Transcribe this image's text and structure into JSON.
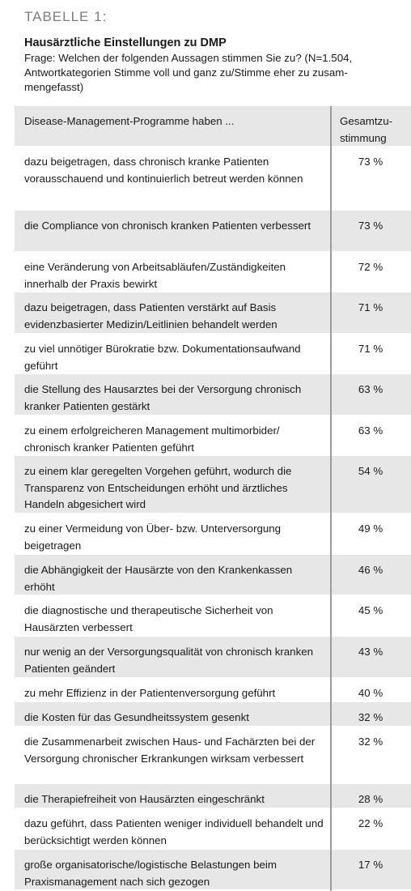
{
  "label": "TABELLE 1:",
  "title": "Hausärztliche Einstellungen zu DMP",
  "subtitle": "Frage: Welchen der folgenden Aussagen stimmen Sie zu? (N=1.504, Antwortkategorien Stimme voll und ganz zu/Stimme eher zu zusam­mengefasst)",
  "header": {
    "statement": "Disease-Management-Programme haben ...",
    "agreement": "Gesamtzu-stimmung"
  },
  "rows": [
    {
      "text": "dazu beigetragen, dass chronisch kranke Patienten vorausschauend und kontinuierlich betreut werden können",
      "value": "73 %"
    },
    {
      "text": "die Compliance von chronisch kranken Patienten verbessert",
      "value": "73 %"
    },
    {
      "text": "eine Veränderung von Arbeitsabläufen/Zuständigkeiten innerhalb der Praxis bewirkt",
      "value": "72 %"
    },
    {
      "text": "dazu beigetragen, dass Patienten verstärkt auf Basis evidenzbasierter Medizin/Leitlinien behandelt werden",
      "value": "71 %"
    },
    {
      "text": "zu viel unnötiger Bürokratie bzw. Dokumentationsaufwand geführt",
      "value": "71 %"
    },
    {
      "text": "die Stellung des Hausarztes bei der Versorgung chronisch kranker Patienten gestärkt",
      "value": "63 %"
    },
    {
      "text": "zu einem erfolgreicheren Management multimorbider/ chronisch kranker Patienten geführt",
      "value": "63 %"
    },
    {
      "text": "zu einem klar geregelten Vorgehen geführt, wodurch die Transparenz von Entscheidungen erhöht und ärztliches Handeln abgesichert wird",
      "value": "54 %"
    },
    {
      "text": "zu einer Vermeidung von Über- bzw. Unterversorgung beigetragen",
      "value": "49 %"
    },
    {
      "text": "die Abhängigkeit der Hausärzte von den Krankenkassen erhöht",
      "value": "46 %"
    },
    {
      "text": "die diagnostische und therapeutische Sicherheit von Hausärzten verbessert",
      "value": "45 %"
    },
    {
      "text": "nur wenig an der Versorgungsqualität von chronisch kranken Patienten geändert",
      "value": "43 %"
    },
    {
      "text": "zu mehr Effizienz in der Patientenversorgung geführt",
      "value": "40 %"
    },
    {
      "text": "die Kosten für das Gesundheitssystem gesenkt",
      "value": "32 %"
    },
    {
      "text": "die Zusammenarbeit zwischen Haus- und Fachärzten bei der Versorgung chronischer Erkrankungen wirksam verbessert",
      "value": "32 %"
    },
    {
      "text": "die Therapiefreiheit von Hausärzten eingeschränkt",
      "value": "28 %"
    },
    {
      "text": "dazu geführt, dass Patienten weniger individuell behandelt und berücksichtigt werden können",
      "value": "22 %"
    },
    {
      "text": "große organisatorische/logistische Belastungen beim Praxismanagement nach sich gezogen",
      "value": "17 %"
    }
  ]
}
